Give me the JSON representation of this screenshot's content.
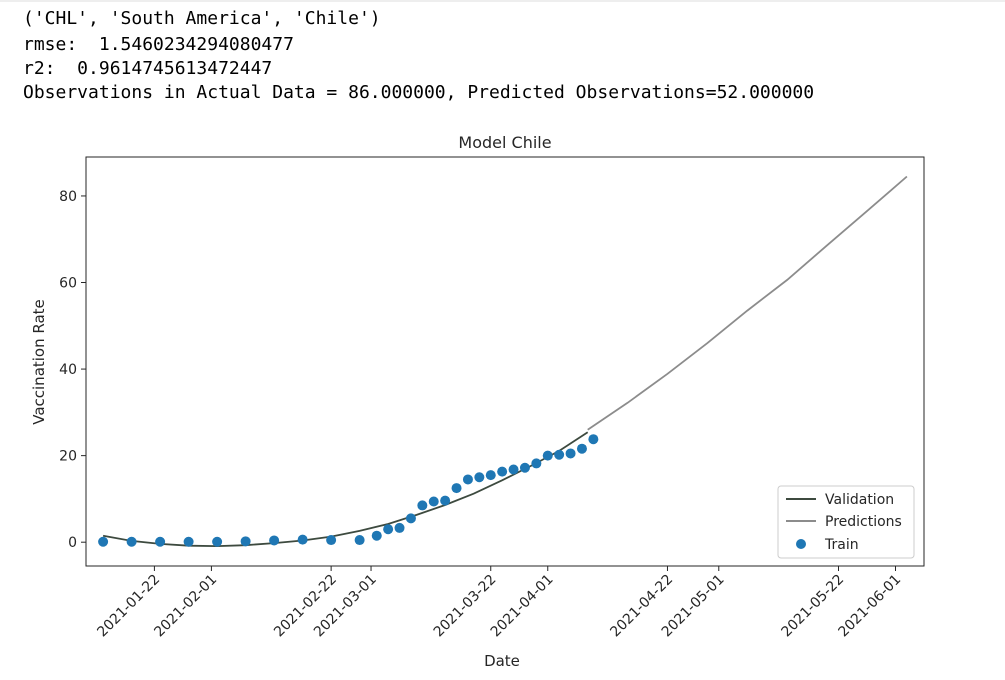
{
  "output": {
    "lines": [
      "('CHL', 'South America', 'Chile')",
      "rmse:  1.5460234294080477",
      "r2:  0.9614745613472447",
      "Observations in Actual Data = 86.000000, Predicted Observations=52.000000"
    ]
  },
  "chart_data": {
    "type": "line",
    "title": "Model Chile",
    "xlabel": "Date",
    "ylabel": "Vaccination Rate",
    "x_range": [
      "2021-01-10",
      "2021-06-06"
    ],
    "ylim": [
      -5.5,
      89
    ],
    "yticks": [
      0,
      20,
      40,
      60,
      80
    ],
    "xticks": [
      "2021-01-22",
      "2021-02-01",
      "2021-02-22",
      "2021-03-01",
      "2021-03-22",
      "2021-04-01",
      "2021-04-22",
      "2021-05-01",
      "2021-05-22",
      "2021-06-01"
    ],
    "legend": {
      "position": "lower-right",
      "entries": [
        "Validation",
        "Predictions",
        "Train"
      ]
    },
    "colors": {
      "validation": "#3d4a3f",
      "predictions": "#8c8c8c",
      "train": "#1f77b4"
    },
    "series": [
      {
        "name": "Validation",
        "kind": "line",
        "x": [
          "2021-01-13",
          "2021-01-18",
          "2021-01-23",
          "2021-01-28",
          "2021-02-02",
          "2021-02-07",
          "2021-02-12",
          "2021-02-17",
          "2021-02-22",
          "2021-02-27",
          "2021-03-04",
          "2021-03-09",
          "2021-03-14",
          "2021-03-19",
          "2021-03-24",
          "2021-03-29",
          "2021-04-03",
          "2021-04-08"
        ],
        "y": [
          1.5,
          0.3,
          -0.4,
          -0.8,
          -0.9,
          -0.7,
          -0.2,
          0.4,
          1.3,
          2.6,
          4.2,
          6.3,
          8.6,
          11.2,
          14.3,
          17.6,
          21.1,
          25.4
        ]
      },
      {
        "name": "Predictions",
        "kind": "line",
        "x": [
          "2021-04-08",
          "2021-04-15",
          "2021-04-22",
          "2021-04-29",
          "2021-05-06",
          "2021-05-13",
          "2021-05-20",
          "2021-05-27",
          "2021-06-03"
        ],
        "y": [
          26.0,
          32.2,
          38.9,
          46.0,
          53.5,
          60.6,
          68.6,
          76.5,
          84.5
        ]
      },
      {
        "name": "Train",
        "kind": "scatter",
        "x": [
          "2021-01-13",
          "2021-01-18",
          "2021-01-23",
          "2021-01-28",
          "2021-02-02",
          "2021-02-07",
          "2021-02-12",
          "2021-02-17",
          "2021-02-22",
          "2021-02-27",
          "2021-03-02",
          "2021-03-04",
          "2021-03-06",
          "2021-03-08",
          "2021-03-10",
          "2021-03-12",
          "2021-03-14",
          "2021-03-16",
          "2021-03-18",
          "2021-03-20",
          "2021-03-22",
          "2021-03-24",
          "2021-03-26",
          "2021-03-28",
          "2021-03-30",
          "2021-04-01",
          "2021-04-03",
          "2021-04-05",
          "2021-04-07",
          "2021-04-09"
        ],
        "y": [
          0.1,
          0.1,
          0.1,
          0.1,
          0.1,
          0.2,
          0.4,
          0.6,
          0.5,
          0.5,
          1.5,
          3.0,
          3.3,
          5.5,
          8.5,
          9.4,
          9.6,
          12.5,
          14.5,
          15.0,
          15.5,
          16.3,
          16.8,
          17.2,
          18.2,
          20.0,
          20.2,
          20.5,
          21.6,
          23.8
        ]
      }
    ]
  }
}
